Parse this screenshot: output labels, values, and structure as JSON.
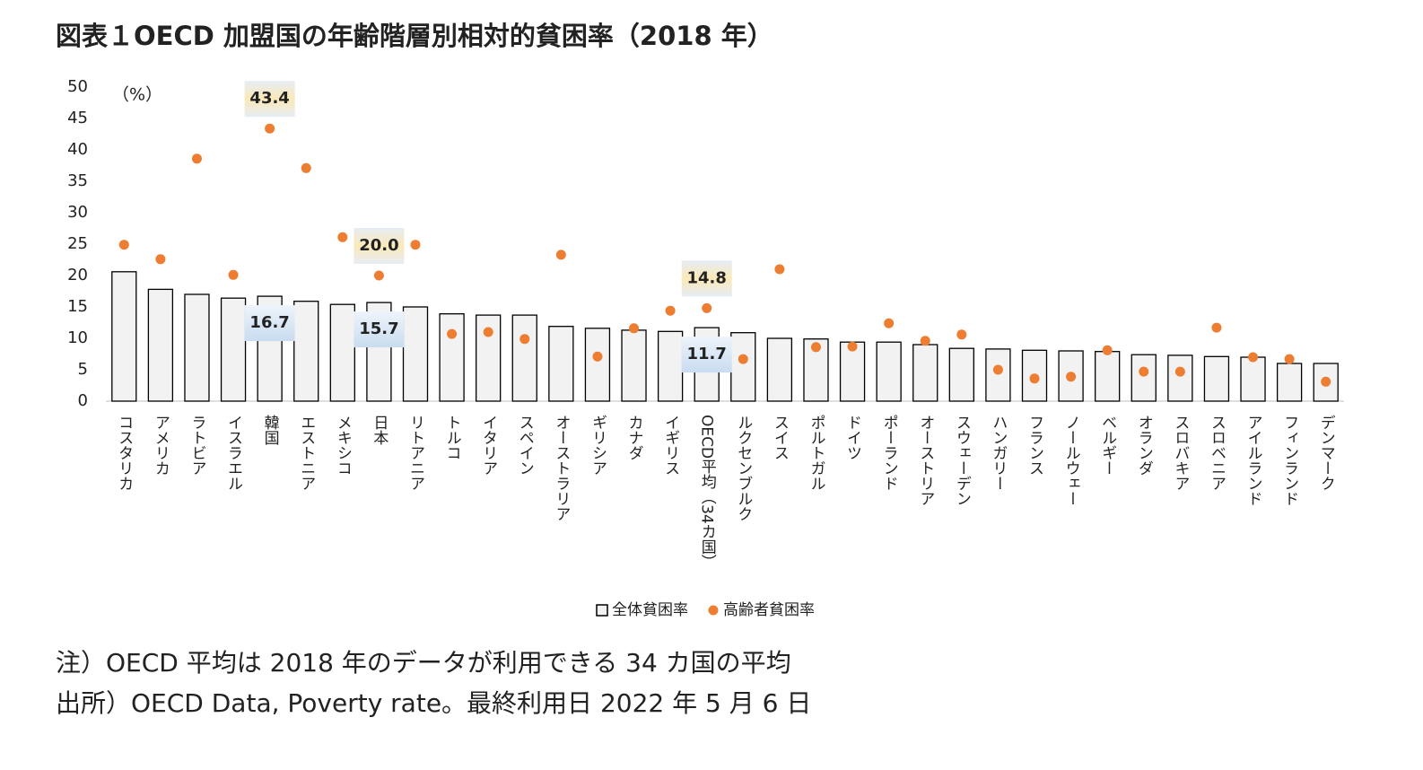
{
  "chart_data": {
    "type": "bar_dot",
    "title": "図表１OECD 加盟国の年齢階層別相対的貧困率（2018 年）",
    "y_unit": "（%）",
    "categories": [
      "コスタリカ",
      "アメリカ",
      "ラトビア",
      "イスラエル",
      "韓国",
      "エストニア",
      "メキシコ",
      "日本",
      "リトアニア",
      "トルコ",
      "イタリア",
      "スペイン",
      "オーストラリア",
      "ギリシア",
      "カナダ",
      "イギリス",
      "OECD平均（34カ国）",
      "ルクセンブルク",
      "スイス",
      "ポルトガル",
      "ドイツ",
      "ポーランド",
      "オーストリア",
      "スウェーデン",
      "ハンガリー",
      "フランス",
      "ノールウェー",
      "ベルギー",
      "オランダ",
      "スロバキア",
      "スロベニア",
      "アイルランド",
      "フィンランド",
      "デンマーク"
    ],
    "series": [
      {
        "name": "全体貧困率",
        "kind": "bar",
        "color": "#f2f2f2",
        "stroke": "#000000",
        "values": [
          20.6,
          17.8,
          17.0,
          16.4,
          16.7,
          15.9,
          15.4,
          15.7,
          15.0,
          13.9,
          13.7,
          13.7,
          11.9,
          11.6,
          11.3,
          11.1,
          11.7,
          10.9,
          10.0,
          9.9,
          9.4,
          9.4,
          9.0,
          8.4,
          8.3,
          8.1,
          8.0,
          7.9,
          7.4,
          7.3,
          7.1,
          7.0,
          6.0,
          6.0
        ],
        "value_labels": [
          null,
          null,
          null,
          null,
          "16.7",
          null,
          null,
          "15.7",
          null,
          null,
          null,
          null,
          null,
          null,
          null,
          null,
          "11.7",
          null,
          null,
          null,
          null,
          null,
          null,
          null,
          null,
          null,
          null,
          null,
          null,
          null,
          null,
          null,
          null,
          null
        ]
      },
      {
        "name": "高齢者貧困率",
        "kind": "dot",
        "color": "#ed7d31",
        "values": [
          24.9,
          22.6,
          38.6,
          20.1,
          43.4,
          37.1,
          26.1,
          20.0,
          24.9,
          10.7,
          11.0,
          9.9,
          23.3,
          7.1,
          11.6,
          14.4,
          14.8,
          6.7,
          21.0,
          8.6,
          8.7,
          12.4,
          9.6,
          10.6,
          5.0,
          3.6,
          3.9,
          8.1,
          4.7,
          4.7,
          11.7,
          7.0,
          6.7,
          3.1
        ],
        "value_labels": [
          null,
          null,
          null,
          null,
          "43.4",
          null,
          null,
          "20.0",
          null,
          null,
          null,
          null,
          null,
          null,
          null,
          null,
          "14.8",
          null,
          null,
          null,
          null,
          null,
          null,
          null,
          null,
          null,
          null,
          null,
          null,
          null,
          null,
          null,
          null,
          null
        ]
      }
    ],
    "ylim": [
      0,
      50
    ],
    "yticks": [
      0,
      5,
      10,
      15,
      20,
      25,
      30,
      35,
      40,
      45,
      50
    ],
    "grid": false,
    "legend": "bottom",
    "notes": [
      "注）OECD 平均は 2018 年のデータが利用できる 34 カ国の平均",
      "出所）OECD Data, Poverty rate。最終利用日 2022 年 5 月 6 日"
    ]
  }
}
